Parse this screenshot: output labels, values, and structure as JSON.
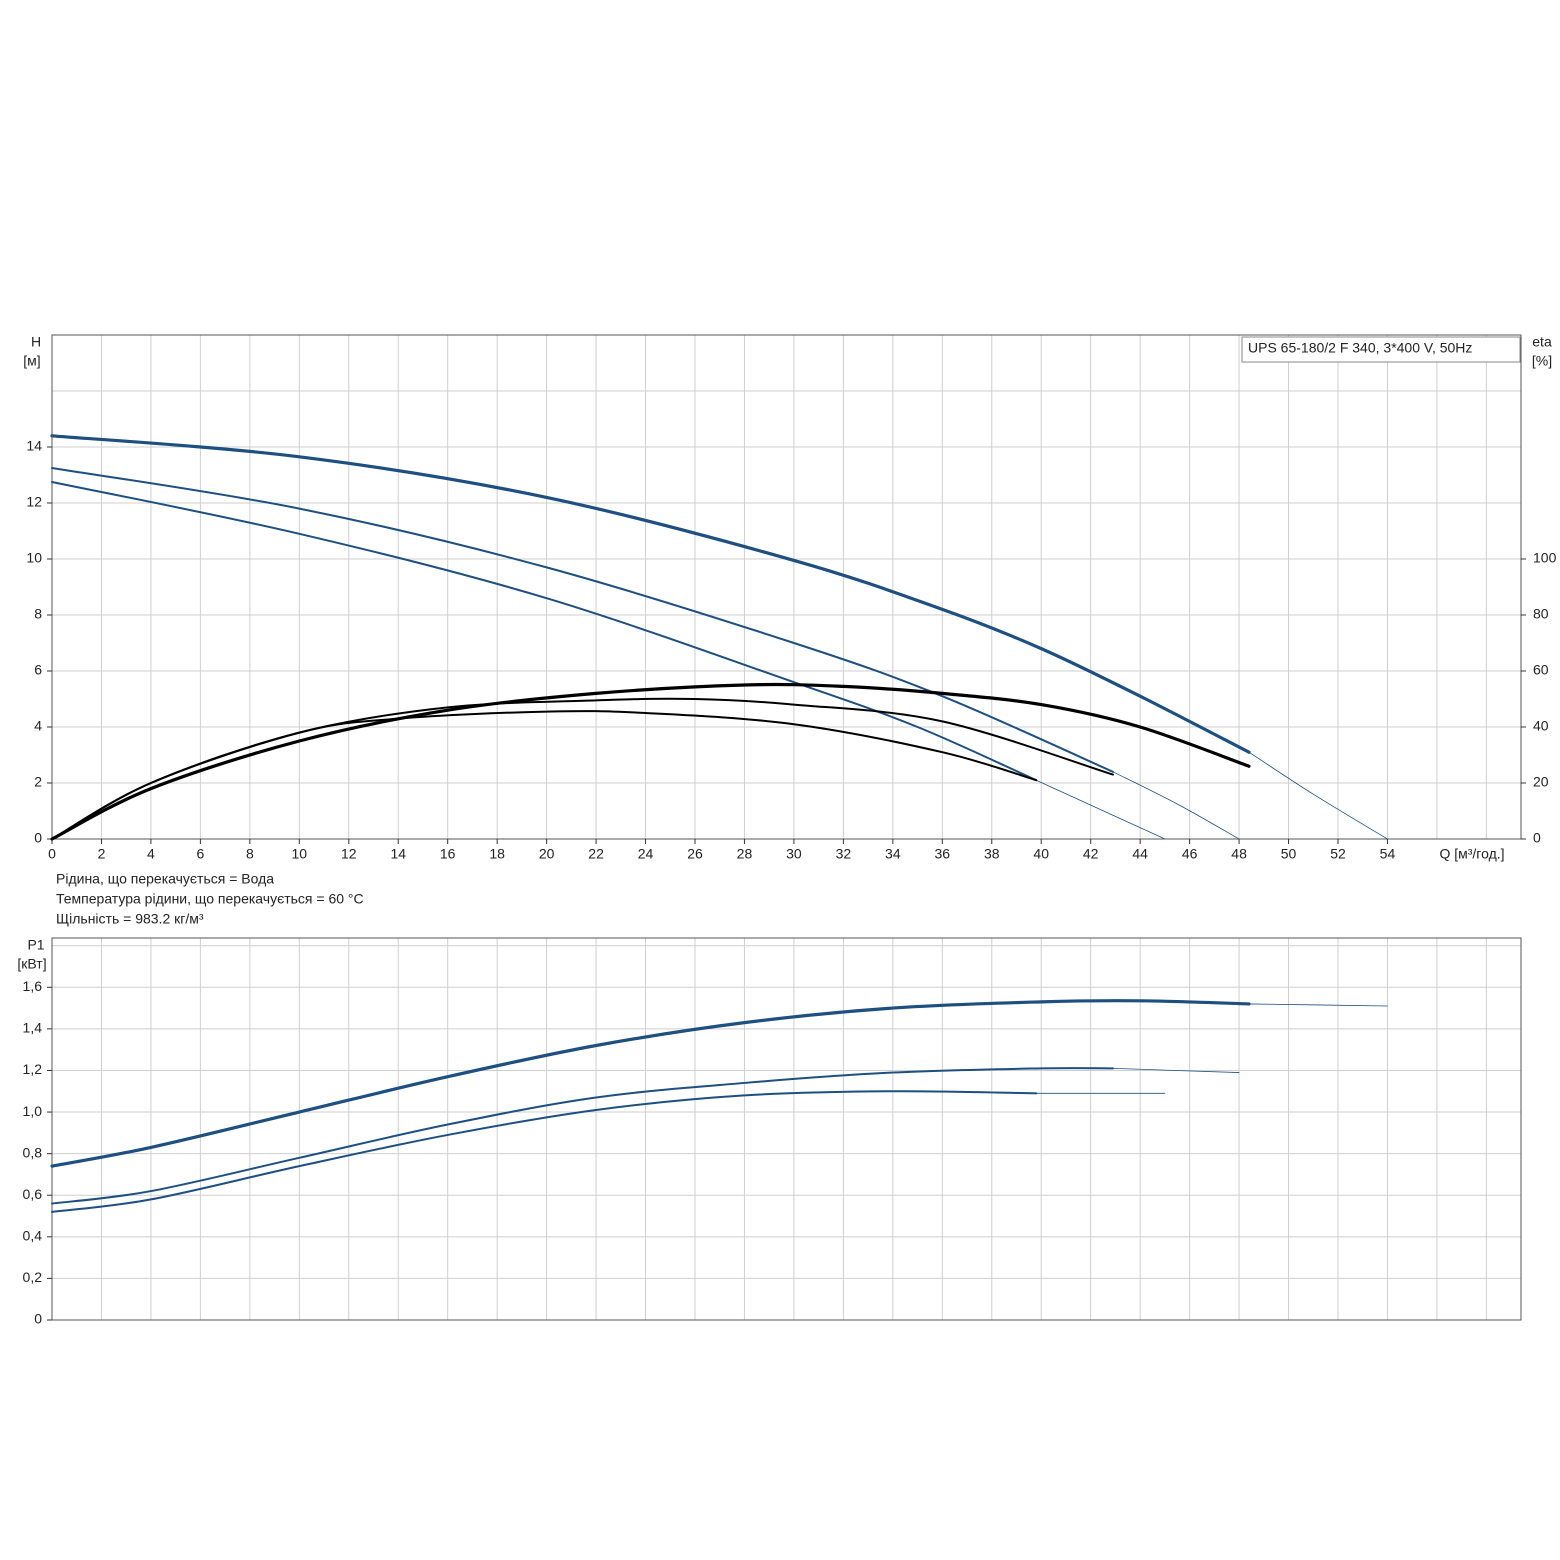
{
  "chart_data": [
    {
      "type": "line",
      "ylabel": "H",
      "yunit": "[м]",
      "y2label": "eta",
      "y2unit": "[%]",
      "xlabel": "Q [м³/год.]",
      "annotation": "UPS 65-180/2 F 340, 3*400 V, 50Hz",
      "notes": [
        "Рідина, що перекачується = Вода",
        "Температура рідини, що перекачується = 60 °C",
        "Щільність = 983.2 кг/м³"
      ],
      "xlim": [
        0,
        59.4
      ],
      "ylim": [
        0,
        18
      ],
      "y2lim": [
        0,
        180
      ],
      "xticks": [
        0,
        2,
        4,
        6,
        8,
        10,
        12,
        14,
        16,
        18,
        20,
        22,
        24,
        26,
        28,
        30,
        32,
        34,
        36,
        38,
        40,
        42,
        44,
        46,
        48,
        50,
        52,
        54
      ],
      "xgrid": [
        0,
        2,
        4,
        6,
        8,
        10,
        12,
        14,
        16,
        18,
        20,
        22,
        24,
        26,
        28,
        30,
        32,
        34,
        36,
        38,
        40,
        42,
        44,
        46,
        48,
        50,
        52,
        54,
        56,
        58
      ],
      "yticks": [
        0,
        2,
        4,
        6,
        8,
        10,
        12,
        14
      ],
      "ygrid": [
        0,
        2,
        4,
        6,
        8,
        10,
        12,
        14,
        16,
        18
      ],
      "y2ticks": [
        0,
        20,
        40,
        60,
        80,
        100
      ],
      "grid": true,
      "series": [
        {
          "color": "#1d4f80",
          "width": 3.2,
          "x": [
            0,
            10,
            20,
            30,
            36,
            40,
            44,
            48.4
          ],
          "values": [
            14.4,
            13.65,
            12.2,
            9.95,
            8.2,
            6.8,
            5.1,
            3.1
          ]
        },
        {
          "color": "#1d4f80",
          "width": 0.8,
          "x": [
            48.4,
            51,
            54
          ],
          "values": [
            3.1,
            1.6,
            0
          ]
        },
        {
          "color": "#1d4f80",
          "width": 2,
          "x": [
            0,
            10,
            20,
            30,
            36,
            42.9
          ],
          "values": [
            13.25,
            11.8,
            9.7,
            7.0,
            5.1,
            2.4
          ]
        },
        {
          "color": "#1d4f80",
          "width": 0.8,
          "x": [
            42.9,
            45.5,
            48
          ],
          "values": [
            2.4,
            1.25,
            0
          ]
        },
        {
          "color": "#1d4f80",
          "width": 2,
          "x": [
            0,
            10,
            20,
            30,
            35,
            39.8
          ],
          "values": [
            12.75,
            10.9,
            8.6,
            5.6,
            4.0,
            2.1
          ]
        },
        {
          "color": "#1d4f80",
          "width": 0.8,
          "x": [
            39.8,
            42.4,
            45
          ],
          "values": [
            2.1,
            1.05,
            0
          ]
        },
        {
          "color": "#000000",
          "width": 3.2,
          "axis": "y2",
          "x": [
            0,
            4,
            10,
            16,
            22,
            28,
            32,
            36,
            40,
            44,
            48.4
          ],
          "values": [
            0,
            18,
            35,
            46,
            52,
            55,
            54.5,
            52,
            48,
            40,
            26
          ]
        },
        {
          "color": "#000000",
          "width": 2,
          "axis": "y2",
          "x": [
            0,
            4,
            10,
            16,
            22,
            26,
            30,
            36,
            42.9
          ],
          "values": [
            0,
            20,
            38,
            47,
            49.5,
            50,
            48,
            42,
            23
          ]
        },
        {
          "color": "#000000",
          "width": 2,
          "axis": "y2",
          "x": [
            0,
            4,
            10,
            14,
            20,
            24,
            30,
            36,
            39.8
          ],
          "values": [
            0,
            20,
            38,
            43,
            45.5,
            45,
            41,
            31,
            21
          ]
        }
      ]
    },
    {
      "type": "line",
      "ylabel": "P1",
      "yunit": "[кВт]",
      "xlim": [
        0,
        59.4
      ],
      "ylim": [
        0,
        1.837
      ],
      "xgrid": [
        0,
        2,
        4,
        6,
        8,
        10,
        12,
        14,
        16,
        18,
        20,
        22,
        24,
        26,
        28,
        30,
        32,
        34,
        36,
        38,
        40,
        42,
        44,
        46,
        48,
        50,
        52,
        54,
        56,
        58
      ],
      "yticks": [
        0,
        {
          "value": 0.2,
          "label": "0,2"
        },
        {
          "value": 0.4,
          "label": "0,4"
        },
        {
          "value": 0.6,
          "label": "0,6"
        },
        {
          "value": 0.8,
          "label": "0,8"
        },
        {
          "value": 1.0,
          "label": "1,0"
        },
        {
          "value": 1.2,
          "label": "1,2"
        },
        {
          "value": 1.4,
          "label": "1,4"
        },
        {
          "value": 1.6,
          "label": "1,6"
        }
      ],
      "ygrid": [
        0,
        0.2,
        0.4,
        0.6,
        0.8,
        1.0,
        1.2,
        1.4,
        1.6,
        1.8
      ],
      "grid": true,
      "series": [
        {
          "color": "#1d4f80",
          "width": 3.2,
          "x": [
            0,
            4,
            10,
            16,
            22,
            28,
            34,
            40,
            44,
            48.4
          ],
          "values": [
            0.74,
            0.83,
            1.0,
            1.17,
            1.32,
            1.43,
            1.5,
            1.53,
            1.535,
            1.52
          ]
        },
        {
          "color": "#1d4f80",
          "width": 0.8,
          "x": [
            48.4,
            54
          ],
          "values": [
            1.52,
            1.51
          ]
        },
        {
          "color": "#1d4f80",
          "width": 2,
          "x": [
            0,
            4,
            10,
            16,
            22,
            28,
            34,
            40,
            42.9
          ],
          "values": [
            0.56,
            0.62,
            0.78,
            0.94,
            1.07,
            1.14,
            1.19,
            1.21,
            1.21
          ]
        },
        {
          "color": "#1d4f80",
          "width": 0.8,
          "x": [
            42.9,
            48
          ],
          "values": [
            1.21,
            1.19
          ]
        },
        {
          "color": "#1d4f80",
          "width": 2,
          "x": [
            0,
            4,
            10,
            16,
            22,
            28,
            34,
            39.8
          ],
          "values": [
            0.52,
            0.58,
            0.74,
            0.89,
            1.01,
            1.08,
            1.1,
            1.09
          ]
        },
        {
          "color": "#1d4f80",
          "width": 0.8,
          "x": [
            39.8,
            45
          ],
          "values": [
            1.09,
            1.09
          ]
        }
      ]
    }
  ]
}
